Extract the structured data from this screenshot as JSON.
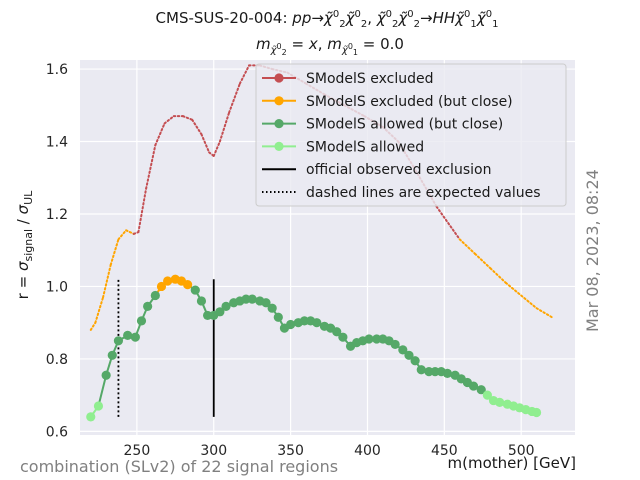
{
  "chart_data": {
    "type": "line",
    "title_line1": "CMS-SUS-20-004: pp→χ̃₂⁰χ̃₂⁰, χ̃₂⁰χ̃₂⁰→HHχ̃₁⁰χ̃₁⁰",
    "title_line2": "mχ̃₂⁰ = x, mχ̃₁⁰ = 0.0",
    "xlabel": "m(mother) [GeV]",
    "ylabel": "r = σsignal / σUL",
    "xlim": [
      213,
      535
    ],
    "ylim": [
      0.59,
      1.625
    ],
    "xticks": [
      250,
      300,
      350,
      400,
      450,
      500
    ],
    "yticks": [
      0.6,
      0.8,
      1.0,
      1.2,
      1.4,
      1.6
    ],
    "xtick_labels": [
      "250",
      "300",
      "350",
      "400",
      "450",
      "500"
    ],
    "ytick_labels": [
      "0.6",
      "0.8",
      "1.0",
      "1.2",
      "1.4",
      "1.6"
    ],
    "grid": true,
    "legend_position": "top-right",
    "legend": [
      {
        "label": "SModelS excluded",
        "color": "#c44e52",
        "kind": "marker"
      },
      {
        "label": "SModelS excluded (but close)",
        "color": "#ffa500",
        "kind": "marker"
      },
      {
        "label": "SModelS allowed (but close)",
        "color": "#55a868",
        "kind": "marker"
      },
      {
        "label": "SModelS allowed",
        "color": "#90ee90",
        "kind": "marker"
      },
      {
        "label": "official observed exclusion",
        "color": "#000000",
        "kind": "solid"
      },
      {
        "label": "dashed lines are expected values",
        "color": "#000000",
        "kind": "dotted"
      }
    ],
    "observed_points": [
      {
        "x": 220,
        "y": 0.64,
        "status": "allowed"
      },
      {
        "x": 225,
        "y": 0.67,
        "status": "allowed"
      },
      {
        "x": 230,
        "y": 0.755,
        "status": "allowed_close"
      },
      {
        "x": 234,
        "y": 0.81,
        "status": "allowed_close"
      },
      {
        "x": 238,
        "y": 0.85,
        "status": "allowed_close"
      },
      {
        "x": 244,
        "y": 0.865,
        "status": "allowed_close"
      },
      {
        "x": 249,
        "y": 0.86,
        "status": "allowed_close"
      },
      {
        "x": 253,
        "y": 0.905,
        "status": "allowed_close"
      },
      {
        "x": 257,
        "y": 0.945,
        "status": "allowed_close"
      },
      {
        "x": 262,
        "y": 0.975,
        "status": "allowed_close"
      },
      {
        "x": 266,
        "y": 1.0,
        "status": "excluded_close"
      },
      {
        "x": 270,
        "y": 1.015,
        "status": "excluded_close"
      },
      {
        "x": 275,
        "y": 1.02,
        "status": "excluded_close"
      },
      {
        "x": 279,
        "y": 1.015,
        "status": "excluded_close"
      },
      {
        "x": 283,
        "y": 1.005,
        "status": "excluded_close"
      },
      {
        "x": 288,
        "y": 0.99,
        "status": "allowed_close"
      },
      {
        "x": 292,
        "y": 0.96,
        "status": "allowed_close"
      },
      {
        "x": 296,
        "y": 0.92,
        "status": "allowed_close"
      },
      {
        "x": 300,
        "y": 0.92,
        "status": "allowed_close"
      },
      {
        "x": 304,
        "y": 0.93,
        "status": "allowed_close"
      },
      {
        "x": 308,
        "y": 0.945,
        "status": "allowed_close"
      },
      {
        "x": 313,
        "y": 0.955,
        "status": "allowed_close"
      },
      {
        "x": 317,
        "y": 0.96,
        "status": "allowed_close"
      },
      {
        "x": 321,
        "y": 0.965,
        "status": "allowed_close"
      },
      {
        "x": 325,
        "y": 0.965,
        "status": "allowed_close"
      },
      {
        "x": 330,
        "y": 0.96,
        "status": "allowed_close"
      },
      {
        "x": 334,
        "y": 0.955,
        "status": "allowed_close"
      },
      {
        "x": 338,
        "y": 0.94,
        "status": "allowed_close"
      },
      {
        "x": 342,
        "y": 0.915,
        "status": "allowed_close"
      },
      {
        "x": 346,
        "y": 0.885,
        "status": "allowed_close"
      },
      {
        "x": 350,
        "y": 0.895,
        "status": "allowed_close"
      },
      {
        "x": 355,
        "y": 0.9,
        "status": "allowed_close"
      },
      {
        "x": 359,
        "y": 0.905,
        "status": "allowed_close"
      },
      {
        "x": 363,
        "y": 0.905,
        "status": "allowed_close"
      },
      {
        "x": 367,
        "y": 0.9,
        "status": "allowed_close"
      },
      {
        "x": 372,
        "y": 0.89,
        "status": "allowed_close"
      },
      {
        "x": 376,
        "y": 0.885,
        "status": "allowed_close"
      },
      {
        "x": 380,
        "y": 0.875,
        "status": "allowed_close"
      },
      {
        "x": 384,
        "y": 0.86,
        "status": "allowed_close"
      },
      {
        "x": 389,
        "y": 0.835,
        "status": "allowed_close"
      },
      {
        "x": 393,
        "y": 0.845,
        "status": "allowed_close"
      },
      {
        "x": 397,
        "y": 0.85,
        "status": "allowed_close"
      },
      {
        "x": 401,
        "y": 0.855,
        "status": "allowed_close"
      },
      {
        "x": 406,
        "y": 0.855,
        "status": "allowed_close"
      },
      {
        "x": 410,
        "y": 0.855,
        "status": "allowed_close"
      },
      {
        "x": 414,
        "y": 0.85,
        "status": "allowed_close"
      },
      {
        "x": 418,
        "y": 0.84,
        "status": "allowed_close"
      },
      {
        "x": 423,
        "y": 0.825,
        "status": "allowed_close"
      },
      {
        "x": 427,
        "y": 0.81,
        "status": "allowed_close"
      },
      {
        "x": 431,
        "y": 0.795,
        "status": "allowed_close"
      },
      {
        "x": 435,
        "y": 0.77,
        "status": "allowed_close"
      },
      {
        "x": 440,
        "y": 0.765,
        "status": "allowed_close"
      },
      {
        "x": 444,
        "y": 0.765,
        "status": "allowed_close"
      },
      {
        "x": 448,
        "y": 0.765,
        "status": "allowed_close"
      },
      {
        "x": 452,
        "y": 0.76,
        "status": "allowed_close"
      },
      {
        "x": 457,
        "y": 0.755,
        "status": "allowed_close"
      },
      {
        "x": 461,
        "y": 0.745,
        "status": "allowed_close"
      },
      {
        "x": 465,
        "y": 0.735,
        "status": "allowed_close"
      },
      {
        "x": 469,
        "y": 0.725,
        "status": "allowed_close"
      },
      {
        "x": 474,
        "y": 0.715,
        "status": "allowed_close"
      },
      {
        "x": 478,
        "y": 0.7,
        "status": "allowed"
      },
      {
        "x": 482,
        "y": 0.685,
        "status": "allowed"
      },
      {
        "x": 486,
        "y": 0.68,
        "status": "allowed"
      },
      {
        "x": 491,
        "y": 0.675,
        "status": "allowed"
      },
      {
        "x": 495,
        "y": 0.67,
        "status": "allowed"
      },
      {
        "x": 499,
        "y": 0.665,
        "status": "allowed"
      },
      {
        "x": 503,
        "y": 0.66,
        "status": "allowed"
      },
      {
        "x": 507,
        "y": 0.655,
        "status": "allowed"
      },
      {
        "x": 510,
        "y": 0.652,
        "status": "allowed"
      }
    ],
    "expected_curve": [
      {
        "x": 220,
        "y": 0.88,
        "status": "excluded_close"
      },
      {
        "x": 223,
        "y": 0.9,
        "status": "excluded_close"
      },
      {
        "x": 228,
        "y": 0.97,
        "status": "excluded_close"
      },
      {
        "x": 233,
        "y": 1.06,
        "status": "excluded_close"
      },
      {
        "x": 238,
        "y": 1.13,
        "status": "excluded_close"
      },
      {
        "x": 243,
        "y": 1.155,
        "status": "excluded_close"
      },
      {
        "x": 248,
        "y": 1.145,
        "status": "excluded_close"
      },
      {
        "x": 251,
        "y": 1.15,
        "status": "excluded"
      },
      {
        "x": 256,
        "y": 1.27,
        "status": "excluded"
      },
      {
        "x": 262,
        "y": 1.39,
        "status": "excluded"
      },
      {
        "x": 268,
        "y": 1.45,
        "status": "excluded"
      },
      {
        "x": 274,
        "y": 1.47,
        "status": "excluded"
      },
      {
        "x": 280,
        "y": 1.47,
        "status": "excluded"
      },
      {
        "x": 286,
        "y": 1.46,
        "status": "excluded"
      },
      {
        "x": 292,
        "y": 1.42,
        "status": "excluded"
      },
      {
        "x": 297,
        "y": 1.37,
        "status": "excluded"
      },
      {
        "x": 300,
        "y": 1.36,
        "status": "excluded"
      },
      {
        "x": 304,
        "y": 1.4,
        "status": "excluded"
      },
      {
        "x": 310,
        "y": 1.48,
        "status": "excluded"
      },
      {
        "x": 317,
        "y": 1.56,
        "status": "excluded"
      },
      {
        "x": 323,
        "y": 1.61,
        "status": "excluded"
      },
      {
        "x": 330,
        "y": 1.61,
        "status": "excluded"
      },
      {
        "x": 338,
        "y": 1.6,
        "status": "excluded"
      },
      {
        "x": 348,
        "y": 1.59,
        "status": "excluded"
      },
      {
        "x": 360,
        "y": 1.56,
        "status": "excluded"
      },
      {
        "x": 372,
        "y": 1.53,
        "status": "excluded"
      },
      {
        "x": 385,
        "y": 1.5,
        "status": "excluded"
      },
      {
        "x": 398,
        "y": 1.47,
        "status": "excluded"
      },
      {
        "x": 410,
        "y": 1.44,
        "status": "excluded"
      },
      {
        "x": 420,
        "y": 1.4,
        "status": "excluded"
      },
      {
        "x": 430,
        "y": 1.33,
        "status": "excluded"
      },
      {
        "x": 445,
        "y": 1.22,
        "status": "excluded"
      },
      {
        "x": 460,
        "y": 1.13,
        "status": "excluded"
      },
      {
        "x": 470,
        "y": 1.09,
        "status": "excluded_close"
      },
      {
        "x": 480,
        "y": 1.05,
        "status": "excluded_close"
      },
      {
        "x": 490,
        "y": 1.01,
        "status": "excluded_close"
      },
      {
        "x": 500,
        "y": 0.975,
        "status": "excluded_close"
      },
      {
        "x": 510,
        "y": 0.94,
        "status": "excluded_close"
      },
      {
        "x": 520,
        "y": 0.915,
        "status": "excluded_close"
      }
    ],
    "official_observed_exclusion": [
      {
        "x": 300,
        "y_low": 0.64,
        "y_high": 1.02
      }
    ],
    "official_expected_exclusion": [
      {
        "x": 238,
        "y_low": 0.64,
        "y_high": 1.02
      }
    ],
    "status_colors": {
      "excluded": "#c44e52",
      "excluded_close": "#ffa500",
      "allowed_close": "#55a868",
      "allowed": "#90ee90"
    }
  },
  "footer_left": "combination (SLv2) of 22 signal regions",
  "side_timestamp": "Mar 08, 2023, 08:24"
}
